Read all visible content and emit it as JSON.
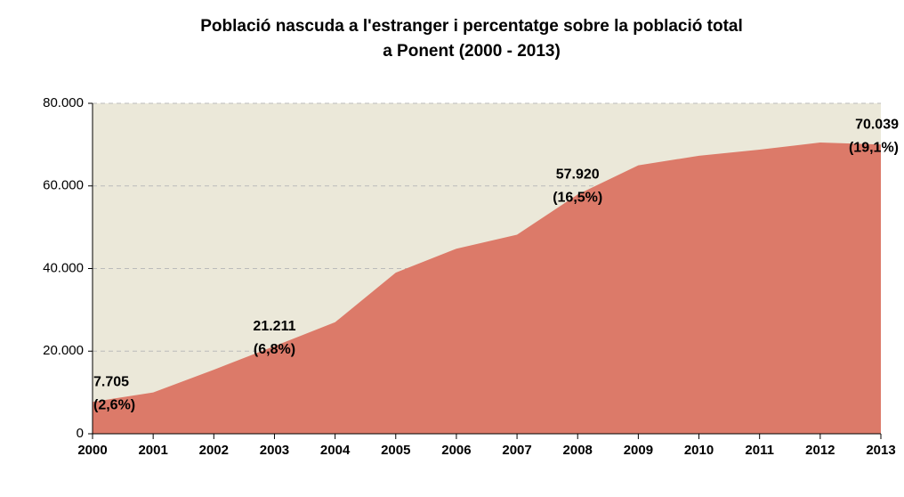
{
  "chart_data": {
    "type": "area",
    "title": [
      "Població nascuda a l'estranger i percentatge sobre la població total",
      "a Ponent (2000 - 2013)"
    ],
    "x": [
      2000,
      2001,
      2002,
      2003,
      2004,
      2005,
      2006,
      2007,
      2008,
      2009,
      2010,
      2011,
      2012,
      2013
    ],
    "values": [
      7705,
      10000,
      15500,
      21211,
      27000,
      39000,
      44800,
      48200,
      57920,
      65000,
      67300,
      68800,
      70500,
      70039
    ],
    "value_labels": [
      "7.705",
      null,
      null,
      "21.211",
      null,
      null,
      null,
      null,
      "57.920",
      null,
      null,
      null,
      null,
      "70.039"
    ],
    "percentages": [
      2.6,
      null,
      null,
      6.8,
      null,
      null,
      null,
      null,
      16.5,
      null,
      null,
      null,
      null,
      19.1
    ],
    "percentage_labels": [
      "(2,6%)",
      null,
      null,
      "(6,8%)",
      null,
      null,
      null,
      null,
      "(16,5%)",
      null,
      null,
      null,
      null,
      "(19,1%)"
    ],
    "color": "#dc7a69",
    "plot_background": "#ebe8d9",
    "xlim": [
      2000,
      2013
    ],
    "xticks": [
      2000,
      2001,
      2002,
      2003,
      2004,
      2005,
      2006,
      2007,
      2008,
      2009,
      2010,
      2011,
      2012,
      2013
    ],
    "ylim": [
      0,
      80000
    ],
    "yticks": [
      0,
      {
        "value": 20000,
        "label": "20.000"
      },
      {
        "value": 40000,
        "label": "40.000"
      },
      {
        "value": 60000,
        "label": "60.000"
      },
      {
        "value": 80000,
        "label": "80.000"
      }
    ],
    "grid": true
  }
}
